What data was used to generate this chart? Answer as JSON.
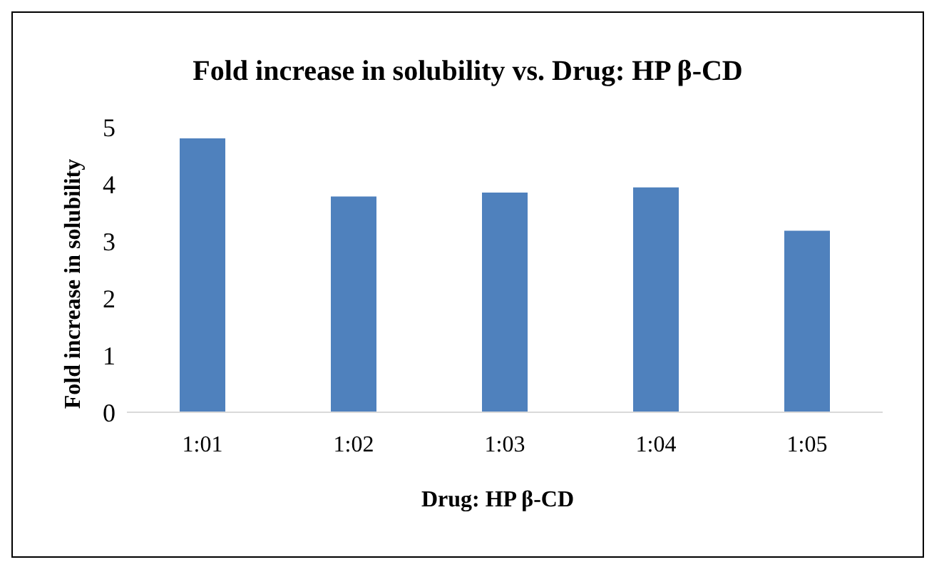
{
  "chart_data": {
    "type": "bar",
    "title": "Fold increase in solubility vs. Drug: HP β-CD",
    "xlabel": "Drug: HP β-CD",
    "ylabel": "Fold increase in solubility",
    "categories": [
      "1:01",
      "1:02",
      "1:03",
      "1:04",
      "1:05"
    ],
    "values": [
      4.8,
      3.78,
      3.85,
      3.94,
      3.18
    ],
    "color": "#4f81bd",
    "ylim": [
      0,
      5
    ],
    "yticks": [
      0,
      1,
      2,
      3,
      4,
      5
    ],
    "grid": false,
    "legend": false
  }
}
